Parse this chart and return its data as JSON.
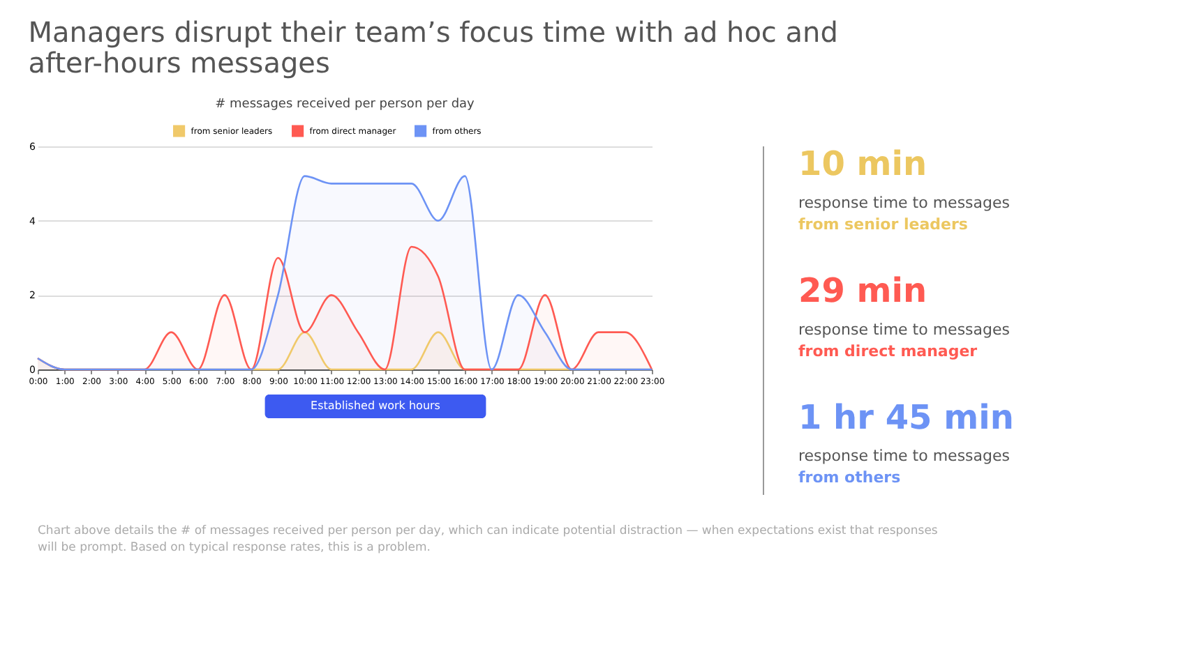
{
  "chart_data": [
    {
      "type": "area",
      "title": "Managers disrupt their team’s focus time with ad hoc and after-hours messages",
      "subtitle": "# messages received per person per day",
      "x": [
        0,
        1,
        2,
        3,
        4,
        5,
        6,
        7,
        8,
        9,
        10,
        11,
        12,
        13,
        14,
        15,
        16,
        17,
        18,
        19,
        20,
        21,
        22,
        23
      ],
      "series": [
        {
          "name": "from senior leaders",
          "color": "#f0c96a",
          "values": [
            0.3,
            0,
            0,
            0,
            0,
            0,
            0,
            0,
            0,
            0,
            1,
            0,
            0,
            0,
            0,
            1,
            0,
            0,
            0,
            0,
            0,
            0,
            0,
            0
          ]
        },
        {
          "name": "from direct manager",
          "color": "#ff5a52",
          "values": [
            0.3,
            0,
            0,
            0,
            0,
            1,
            0,
            2,
            0,
            3,
            1,
            2,
            1,
            0,
            3.3,
            2.5,
            0,
            0,
            0,
            2,
            0,
            1,
            1,
            0
          ]
        },
        {
          "name": "from others",
          "color": "#6d93f5",
          "values": [
            0.3,
            0,
            0,
            0,
            0,
            0,
            0,
            0,
            0,
            2,
            5.2,
            5,
            5,
            5,
            5,
            4,
            5.2,
            0,
            2,
            1,
            0,
            0,
            0,
            0
          ]
        }
      ],
      "xlim": [
        0,
        23
      ],
      "xticks": [
        {
          "value": 0,
          "label": "0:00"
        },
        {
          "value": 1,
          "label": "1:00"
        },
        {
          "value": 2,
          "label": "2:00"
        },
        {
          "value": 3,
          "label": "3:00"
        },
        {
          "value": 4,
          "label": "4:00"
        },
        {
          "value": 5,
          "label": "5:00"
        },
        {
          "value": 6,
          "label": "6:00"
        },
        {
          "value": 7,
          "label": "7:00"
        },
        {
          "value": 8,
          "label": "8:00"
        },
        {
          "value": 9,
          "label": "9:00"
        },
        {
          "value": 10,
          "label": "10:00"
        },
        {
          "value": 11,
          "label": "11:00"
        },
        {
          "value": 12,
          "label": "12:00"
        },
        {
          "value": 13,
          "label": "13:00"
        },
        {
          "value": 14,
          "label": "14:00"
        },
        {
          "value": 15,
          "label": "15:00"
        },
        {
          "value": 16,
          "label": "16:00"
        },
        {
          "value": 17,
          "label": "17:00"
        },
        {
          "value": 18,
          "label": "18:00"
        },
        {
          "value": 19,
          "label": "19:00"
        },
        {
          "value": 20,
          "label": "20:00"
        },
        {
          "value": 21,
          "label": "21:00"
        },
        {
          "value": 22,
          "label": "22:00"
        },
        {
          "value": 23,
          "label": "23:00"
        }
      ],
      "ylim": [
        0,
        6
      ],
      "yticks": [
        0,
        2,
        4,
        6
      ],
      "grid": "y",
      "legend": "top",
      "annotations": [
        "Chart above details the # of messages received per person per day, which can indicate potential distraction — when expectations exist that responses will be prompt. Based on typical response rates, this is a problem.",
        "Established work hours"
      ]
    },
    {
      "type": "other",
      "categories": [
        "10 min",
        "29 min",
        "1 hr 45 min"
      ],
      "colors": [
        "#ecc760",
        "#ff5a52",
        "#6d93f5"
      ],
      "annotations": [
        "response time to messages",
        "from senior leaders",
        "response time to messages",
        "from direct manager",
        "response time to messages",
        "from others"
      ]
    }
  ]
}
